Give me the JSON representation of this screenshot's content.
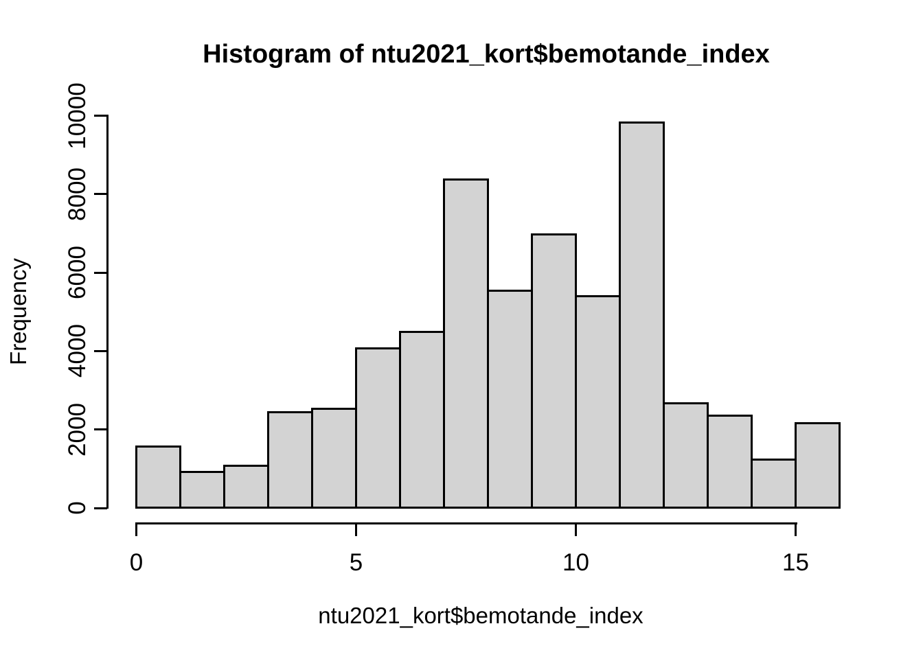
{
  "chart_data": {
    "type": "bar",
    "subtype": "histogram",
    "title": "Histogram of ntu2021_kort$bemotande_index",
    "xlabel": "ntu2021_kort$bemotande_index",
    "ylabel": "Frequency",
    "bin_width": 1,
    "bin_edges": [
      0,
      1,
      2,
      3,
      4,
      5,
      6,
      7,
      8,
      9,
      10,
      11,
      12,
      13,
      14,
      15,
      16
    ],
    "counts": [
      1560,
      920,
      1080,
      2440,
      2520,
      4060,
      4490,
      8370,
      5530,
      6970,
      5390,
      9830,
      2670,
      2350,
      1230,
      2160
    ],
    "x_ticks": [
      0,
      5,
      10,
      15
    ],
    "y_ticks": [
      0,
      2000,
      4000,
      6000,
      8000,
      10000
    ],
    "xlim": [
      0,
      16
    ],
    "ylim": [
      0,
      10000
    ],
    "grid": "off",
    "legend": "none",
    "bar_fill": "#d3d3d3",
    "bar_border": "#000000",
    "axis_color": "#000000",
    "text_color": "#000000",
    "background": "#ffffff"
  }
}
